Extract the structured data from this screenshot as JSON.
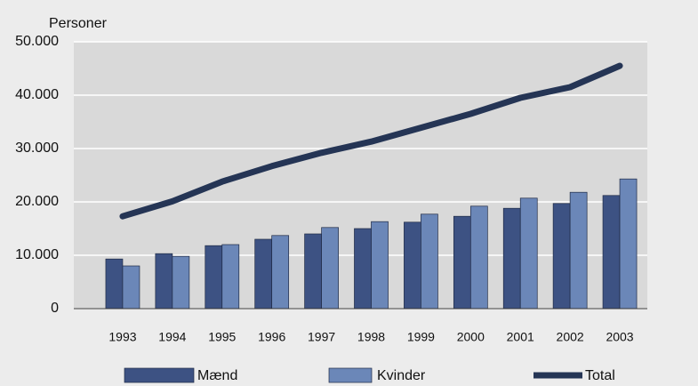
{
  "chart_data": {
    "type": "bar",
    "y_label": "Personer",
    "categories": [
      "1993",
      "1994",
      "1995",
      "1996",
      "1997",
      "1998",
      "1999",
      "2000",
      "2001",
      "2002",
      "2003"
    ],
    "series": [
      {
        "name": "Mænd",
        "color": "#3d5283",
        "type": "bar",
        "values": [
          9300,
          10300,
          11800,
          13000,
          14000,
          15000,
          16200,
          17300,
          18800,
          19700,
          21200
        ]
      },
      {
        "name": "Kvinder",
        "color": "#6b87b8",
        "type": "bar",
        "values": [
          8000,
          9800,
          12000,
          13700,
          15200,
          16300,
          17700,
          19200,
          20700,
          21800,
          24300
        ]
      },
      {
        "name": "Total",
        "color": "#253555",
        "type": "line",
        "values": [
          17300,
          20100,
          23800,
          26700,
          29200,
          31300,
          33900,
          36500,
          39500,
          41500,
          45500
        ]
      }
    ],
    "ylim": [
      0,
      50000
    ],
    "yticks": [
      0,
      {
        "value": 10000,
        "label": "10.000"
      },
      {
        "value": 20000,
        "label": "20.000"
      },
      {
        "value": 30000,
        "label": "30.000"
      },
      {
        "value": 40000,
        "label": "40.000"
      },
      {
        "value": 50000,
        "label": "50.000"
      }
    ],
    "grid": true,
    "legend": "bottom"
  }
}
